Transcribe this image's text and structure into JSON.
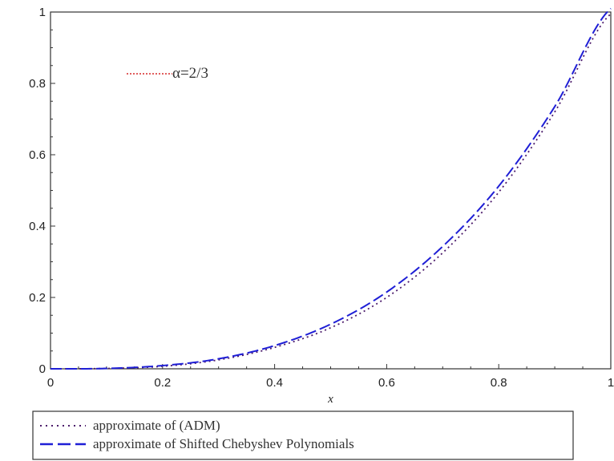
{
  "chart_data": {
    "type": "line",
    "title": "",
    "xlabel": "x",
    "ylabel": "",
    "xlim": [
      0,
      1
    ],
    "ylim": [
      0,
      1
    ],
    "xticks": [
      "0",
      "0.2",
      "0.4",
      "0.6",
      "0.8",
      "1"
    ],
    "yticks": [
      "0",
      "0.2",
      "0.4",
      "0.6",
      "0.8",
      "1"
    ],
    "grid": false,
    "legend_position": "bottom-left",
    "annotation": {
      "text": "α=2/3",
      "color": "#d62828"
    },
    "series": [
      {
        "name": "approximate of (ADM)",
        "style": "dotted",
        "color": "#4b1b6b",
        "x": [
          0,
          0.1,
          0.2,
          0.3,
          0.4,
          0.5,
          0.6,
          0.7,
          0.8,
          0.9,
          1.0
        ],
        "y": [
          0,
          0.001,
          0.007,
          0.025,
          0.06,
          0.115,
          0.2,
          0.325,
          0.495,
          0.72,
          0.995
        ]
      },
      {
        "name": "approximate of Shifted Chebyshev Polynomials",
        "style": "dashed",
        "color": "#1f1fd6",
        "x": [
          0,
          0.1,
          0.2,
          0.3,
          0.4,
          0.5,
          0.6,
          0.7,
          0.8,
          0.9,
          1.0
        ],
        "y": [
          0,
          0.001,
          0.009,
          0.028,
          0.065,
          0.125,
          0.215,
          0.343,
          0.512,
          0.735,
          1.01
        ]
      }
    ]
  }
}
